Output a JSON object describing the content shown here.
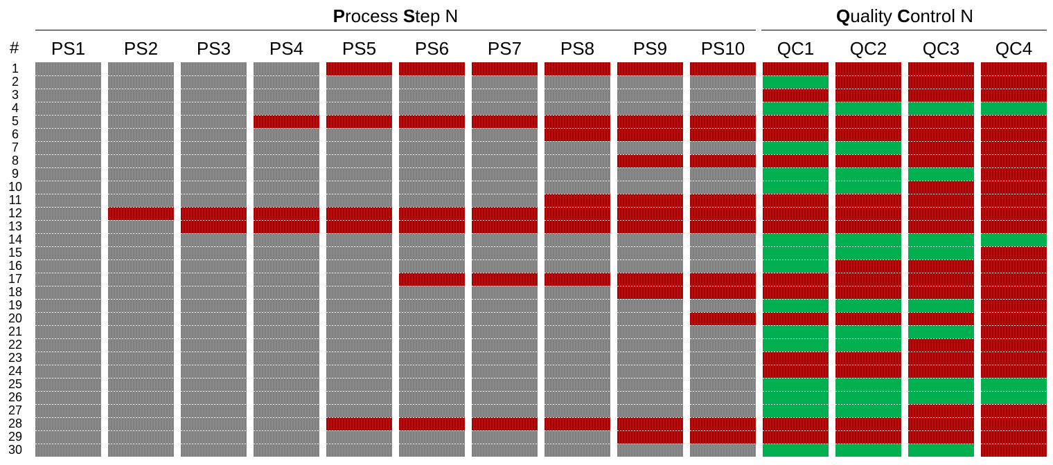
{
  "header": {
    "process_group": {
      "title_parts": [
        [
          "P",
          true
        ],
        [
          "rocess ",
          false
        ],
        [
          "S",
          true
        ],
        [
          "tep N",
          false
        ]
      ]
    },
    "qc_group": {
      "title_parts": [
        [
          "Q",
          true
        ],
        [
          "uality ",
          false
        ],
        [
          "C",
          true
        ],
        [
          "ontrol N",
          false
        ]
      ]
    },
    "row_header": "#"
  },
  "chart_data": {
    "type": "heatmap",
    "status_colors": {
      "gray": "#808080",
      "red": "#b00000",
      "green": "#00b050"
    },
    "columns": [
      "PS1",
      "PS2",
      "PS3",
      "PS4",
      "PS5",
      "PS6",
      "PS7",
      "PS8",
      "PS9",
      "PS10",
      "QC1",
      "QC2",
      "QC3",
      "QC4"
    ],
    "rows": [
      1,
      2,
      3,
      4,
      5,
      6,
      7,
      8,
      9,
      10,
      11,
      12,
      13,
      14,
      15,
      16,
      17,
      18,
      19,
      20,
      21,
      22,
      23,
      24,
      25,
      26,
      27,
      28,
      29,
      30
    ],
    "cells": {
      "PS1": [
        "gray",
        "gray",
        "gray",
        "gray",
        "gray",
        "gray",
        "gray",
        "gray",
        "gray",
        "gray",
        "gray",
        "gray",
        "gray",
        "gray",
        "gray",
        "gray",
        "gray",
        "gray",
        "gray",
        "gray",
        "gray",
        "gray",
        "gray",
        "gray",
        "gray",
        "gray",
        "gray",
        "gray",
        "gray",
        "gray"
      ],
      "PS2": [
        "gray",
        "gray",
        "gray",
        "gray",
        "gray",
        "gray",
        "gray",
        "gray",
        "gray",
        "gray",
        "gray",
        "red",
        "gray",
        "gray",
        "gray",
        "gray",
        "gray",
        "gray",
        "gray",
        "gray",
        "gray",
        "gray",
        "gray",
        "gray",
        "gray",
        "gray",
        "gray",
        "gray",
        "gray",
        "gray"
      ],
      "PS3": [
        "gray",
        "gray",
        "gray",
        "gray",
        "gray",
        "gray",
        "gray",
        "gray",
        "gray",
        "gray",
        "gray",
        "red",
        "red",
        "gray",
        "gray",
        "gray",
        "gray",
        "gray",
        "gray",
        "gray",
        "gray",
        "gray",
        "gray",
        "gray",
        "gray",
        "gray",
        "gray",
        "gray",
        "gray",
        "gray"
      ],
      "PS4": [
        "gray",
        "gray",
        "gray",
        "gray",
        "red",
        "gray",
        "gray",
        "gray",
        "gray",
        "gray",
        "gray",
        "red",
        "red",
        "gray",
        "gray",
        "gray",
        "gray",
        "gray",
        "gray",
        "gray",
        "gray",
        "gray",
        "gray",
        "gray",
        "gray",
        "gray",
        "gray",
        "gray",
        "gray",
        "gray"
      ],
      "PS5": [
        "red",
        "gray",
        "gray",
        "gray",
        "red",
        "gray",
        "gray",
        "gray",
        "gray",
        "gray",
        "gray",
        "red",
        "red",
        "gray",
        "gray",
        "gray",
        "gray",
        "gray",
        "gray",
        "gray",
        "gray",
        "gray",
        "gray",
        "gray",
        "gray",
        "gray",
        "gray",
        "red",
        "gray",
        "gray"
      ],
      "PS6": [
        "red",
        "gray",
        "gray",
        "gray",
        "red",
        "gray",
        "gray",
        "gray",
        "gray",
        "gray",
        "gray",
        "red",
        "red",
        "gray",
        "gray",
        "gray",
        "red",
        "gray",
        "gray",
        "gray",
        "gray",
        "gray",
        "gray",
        "gray",
        "gray",
        "gray",
        "gray",
        "red",
        "gray",
        "gray"
      ],
      "PS7": [
        "red",
        "gray",
        "gray",
        "gray",
        "red",
        "gray",
        "gray",
        "gray",
        "gray",
        "gray",
        "gray",
        "red",
        "red",
        "gray",
        "gray",
        "gray",
        "red",
        "gray",
        "gray",
        "gray",
        "gray",
        "gray",
        "gray",
        "gray",
        "gray",
        "gray",
        "gray",
        "red",
        "gray",
        "gray"
      ],
      "PS8": [
        "red",
        "gray",
        "gray",
        "gray",
        "red",
        "red",
        "gray",
        "gray",
        "gray",
        "gray",
        "red",
        "red",
        "red",
        "gray",
        "gray",
        "gray",
        "red",
        "gray",
        "gray",
        "gray",
        "gray",
        "gray",
        "gray",
        "gray",
        "gray",
        "gray",
        "gray",
        "red",
        "gray",
        "gray"
      ],
      "PS9": [
        "red",
        "gray",
        "gray",
        "gray",
        "red",
        "red",
        "gray",
        "red",
        "gray",
        "gray",
        "red",
        "red",
        "red",
        "gray",
        "gray",
        "gray",
        "red",
        "red",
        "gray",
        "gray",
        "gray",
        "gray",
        "gray",
        "gray",
        "gray",
        "gray",
        "gray",
        "red",
        "red",
        "gray"
      ],
      "PS10": [
        "red",
        "gray",
        "gray",
        "gray",
        "red",
        "red",
        "gray",
        "red",
        "gray",
        "gray",
        "red",
        "red",
        "red",
        "gray",
        "gray",
        "gray",
        "red",
        "red",
        "gray",
        "red",
        "gray",
        "gray",
        "gray",
        "gray",
        "gray",
        "gray",
        "gray",
        "red",
        "red",
        "gray"
      ],
      "QC1": [
        "red",
        "green",
        "red",
        "green",
        "red",
        "red",
        "green",
        "red",
        "green",
        "green",
        "red",
        "red",
        "red",
        "green",
        "green",
        "green",
        "red",
        "red",
        "green",
        "red",
        "green",
        "green",
        "red",
        "red",
        "green",
        "green",
        "green",
        "red",
        "red",
        "green"
      ],
      "QC2": [
        "red",
        "red",
        "red",
        "green",
        "red",
        "red",
        "green",
        "red",
        "green",
        "green",
        "red",
        "red",
        "red",
        "green",
        "green",
        "red",
        "red",
        "red",
        "green",
        "red",
        "green",
        "green",
        "red",
        "red",
        "green",
        "green",
        "green",
        "red",
        "red",
        "green"
      ],
      "QC3": [
        "red",
        "red",
        "red",
        "green",
        "red",
        "red",
        "red",
        "red",
        "green",
        "red",
        "red",
        "red",
        "red",
        "green",
        "green",
        "red",
        "red",
        "red",
        "green",
        "red",
        "green",
        "red",
        "red",
        "red",
        "green",
        "green",
        "red",
        "red",
        "red",
        "green"
      ],
      "QC4": [
        "red",
        "red",
        "red",
        "green",
        "red",
        "red",
        "red",
        "red",
        "red",
        "red",
        "red",
        "red",
        "red",
        "green",
        "red",
        "red",
        "red",
        "red",
        "red",
        "red",
        "red",
        "red",
        "red",
        "red",
        "green",
        "green",
        "red",
        "red",
        "red",
        "red"
      ]
    }
  }
}
